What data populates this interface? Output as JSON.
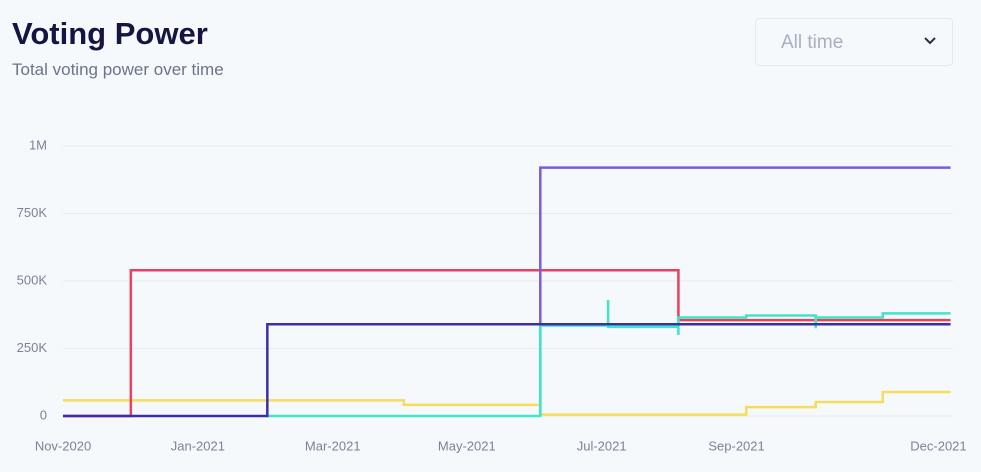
{
  "title": "Voting Power",
  "subtitle": "Total voting power over time",
  "dropdown": "All time",
  "chart_data": {
    "type": "step",
    "xlim": [
      2020.833,
      2021.935
    ],
    "xticks": [
      {
        "value": 2020.833,
        "label": "Nov-2020"
      },
      {
        "value": 2021.0,
        "label": "Jan-2021"
      },
      {
        "value": 2021.167,
        "label": "Mar-2021"
      },
      {
        "value": 2021.333,
        "label": "May-2021"
      },
      {
        "value": 2021.5,
        "label": "Jul-2021"
      },
      {
        "value": 2021.667,
        "label": "Sep-2021"
      },
      {
        "value": 2021.917,
        "label": "Dec-2021"
      }
    ],
    "ylim": [
      0,
      1000000
    ],
    "yticks": [
      0,
      {
        "value": 250000,
        "label": "250K"
      },
      {
        "value": 500000,
        "label": "500K"
      },
      {
        "value": 750000,
        "label": "750K"
      },
      {
        "value": 1000000,
        "label": "1M"
      }
    ],
    "grid": true,
    "series": [
      {
        "color": "#f5dc5a",
        "x": [
          2020.833,
          2021.255,
          2021.424,
          2021.679,
          2021.765,
          2021.848,
          2021.932
        ],
        "values": [
          58000,
          41000,
          5000,
          33000,
          52000,
          89000,
          89000
        ]
      },
      {
        "color": "#e8405e",
        "x": [
          2020.833,
          2020.917,
          2021.595,
          2021.932
        ],
        "values": [
          0,
          540000,
          355000,
          355000
        ]
      },
      {
        "color": "#7b5ce0",
        "x": [
          2021.424,
          2021.424,
          2021.932
        ],
        "values": [
          0,
          920000,
          920000
        ]
      },
      {
        "color": "#3ee6c9",
        "x": [
          2021.086,
          2021.424,
          2021.424,
          2021.508,
          2021.508,
          2021.508,
          2021.595,
          2021.595,
          2021.595,
          2021.679,
          2021.765,
          2021.765,
          2021.765,
          2021.848,
          2021.932
        ],
        "values": [
          0,
          0,
          335000,
          340000,
          430000,
          330000,
          330000,
          300000,
          365000,
          372000,
          372000,
          325000,
          365000,
          380000,
          380000
        ]
      },
      {
        "color": "#3a2fa8",
        "x": [
          2020.833,
          2021.086,
          2021.932
        ],
        "values": [
          0,
          340000,
          340000
        ]
      }
    ]
  }
}
